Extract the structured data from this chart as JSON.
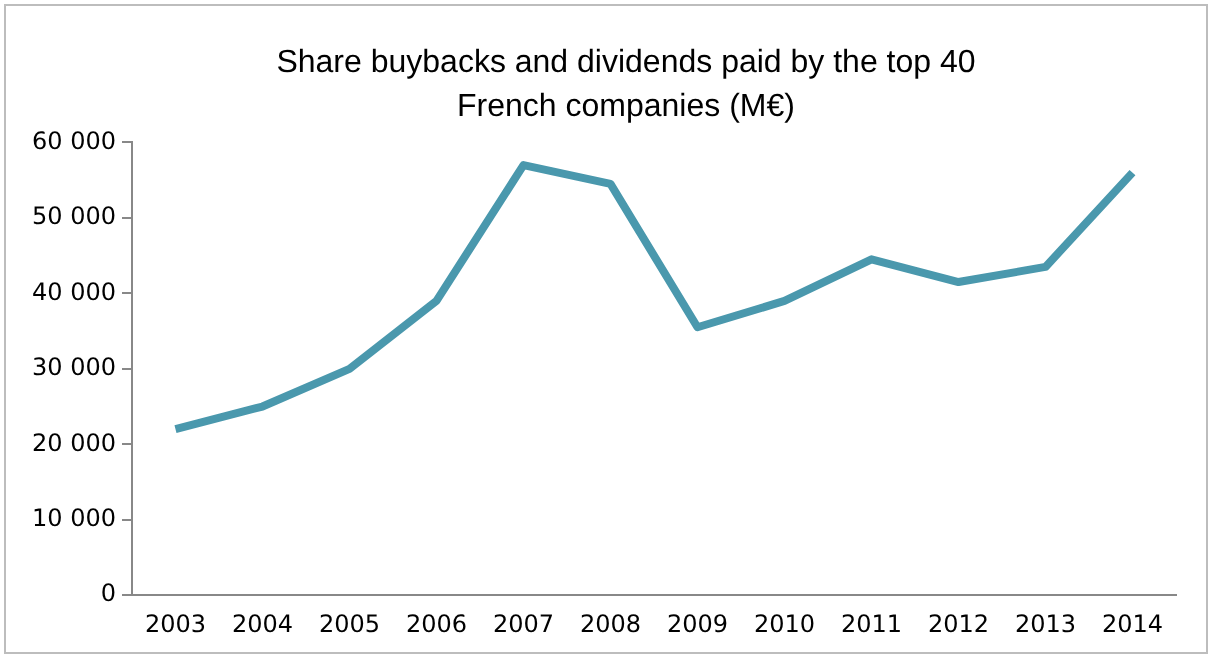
{
  "chart_data": {
    "type": "line",
    "title": "Share buybacks and dividends paid by the top 40 French companies (M€)",
    "categories": [
      "2003",
      "2004",
      "2005",
      "2006",
      "2007",
      "2008",
      "2009",
      "2010",
      "2011",
      "2012",
      "2013",
      "2014"
    ],
    "series": [
      {
        "color": "#4a98ad",
        "values": [
          22000,
          25000,
          30000,
          39000,
          57000,
          54500,
          35500,
          39000,
          44500,
          41500,
          43500,
          56000
        ]
      }
    ],
    "ylim": [
      0,
      60000
    ],
    "yticks": [
      {
        "value": 0,
        "label": "0"
      },
      {
        "value": 10000,
        "label": "10 000"
      },
      {
        "value": 20000,
        "label": "20 000"
      },
      {
        "value": 30000,
        "label": "30 000"
      },
      {
        "value": 40000,
        "label": "40 000"
      },
      {
        "value": 50000,
        "label": "50 000"
      },
      {
        "value": 60000,
        "label": "60 000"
      }
    ],
    "grid": false,
    "legend": false,
    "marker": "none",
    "line_style": "solid"
  }
}
